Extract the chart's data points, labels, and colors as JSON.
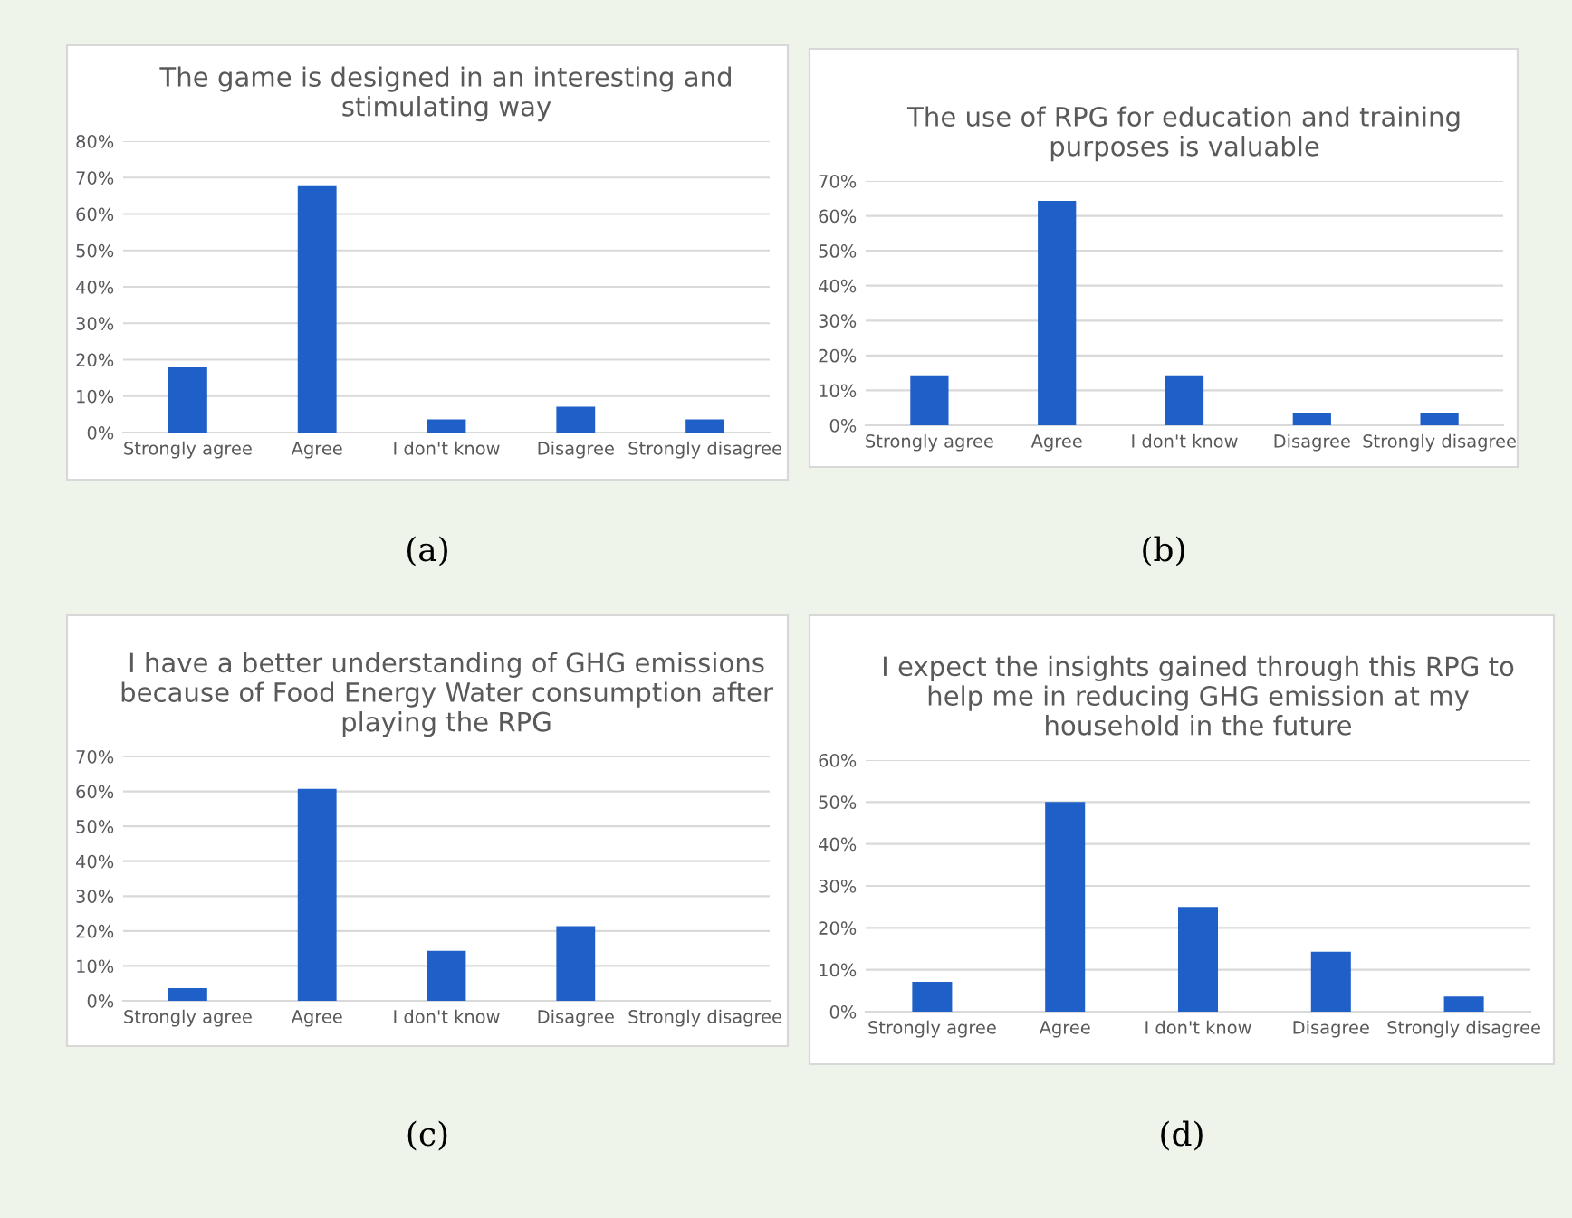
{
  "chart_data": [
    {
      "type": "bar",
      "title": "The game is designed in an interesting and\nstimulating way",
      "categories": [
        "Strongly agree",
        "Agree",
        "I don't know",
        "Disagree",
        "Strongly disagree"
      ],
      "values": [
        17.9,
        67.9,
        3.6,
        7.1,
        3.6
      ],
      "color": "#1f5fc8",
      "ylim": [
        0,
        80
      ],
      "yticks": [
        {
          "value": 0,
          "label": "0%"
        },
        {
          "value": 10,
          "label": "10%"
        },
        {
          "value": 20,
          "label": "20%"
        },
        {
          "value": 30,
          "label": "30%"
        },
        {
          "value": 40,
          "label": "40%"
        },
        {
          "value": 50,
          "label": "50%"
        },
        {
          "value": 60,
          "label": "60%"
        },
        {
          "value": 70,
          "label": "70%"
        },
        {
          "value": 80,
          "label": "80%"
        }
      ],
      "grid": "y",
      "legend": false,
      "annotations": [
        "(a)"
      ]
    },
    {
      "type": "bar",
      "title": "The use of RPG for education and training\npurposes is valuable",
      "categories": [
        "Strongly agree",
        "Agree",
        "I don't know",
        "Disagree",
        "Strongly disagree"
      ],
      "values": [
        14.3,
        64.3,
        14.3,
        3.6,
        3.6
      ],
      "color": "#1f5fc8",
      "ylim": [
        0,
        70
      ],
      "yticks": [
        {
          "value": 0,
          "label": "0%"
        },
        {
          "value": 10,
          "label": "10%"
        },
        {
          "value": 20,
          "label": "20%"
        },
        {
          "value": 30,
          "label": "30%"
        },
        {
          "value": 40,
          "label": "40%"
        },
        {
          "value": 50,
          "label": "50%"
        },
        {
          "value": 60,
          "label": "60%"
        },
        {
          "value": 70,
          "label": "70%"
        }
      ],
      "grid": "y",
      "legend": false,
      "annotations": [
        "(b)"
      ]
    },
    {
      "type": "bar",
      "title": "I have a better understanding of GHG emissions\nbecause of Food Energy Water consumption after\nplaying the RPG",
      "categories": [
        "Strongly agree",
        "Agree",
        "I don't know",
        "Disagree",
        "Strongly disagree"
      ],
      "values": [
        3.6,
        60.7,
        14.3,
        21.4,
        0
      ],
      "color": "#1f5fc8",
      "ylim": [
        0,
        70
      ],
      "yticks": [
        {
          "value": 0,
          "label": "0%"
        },
        {
          "value": 10,
          "label": "10%"
        },
        {
          "value": 20,
          "label": "20%"
        },
        {
          "value": 30,
          "label": "30%"
        },
        {
          "value": 40,
          "label": "40%"
        },
        {
          "value": 50,
          "label": "50%"
        },
        {
          "value": 60,
          "label": "60%"
        },
        {
          "value": 70,
          "label": "70%"
        }
      ],
      "grid": "y",
      "legend": false,
      "annotations": [
        "(c)"
      ]
    },
    {
      "type": "bar",
      "title": "I expect the insights gained through this RPG to\nhelp me in reducing GHG emission at my\nhousehold in the future",
      "categories": [
        "Strongly agree",
        "Agree",
        "I don't know",
        "Disagree",
        "Strongly disagree"
      ],
      "values": [
        7.1,
        50.0,
        25.0,
        14.3,
        3.6
      ],
      "color": "#1f5fc8",
      "ylim": [
        0,
        60
      ],
      "yticks": [
        {
          "value": 0,
          "label": "0%"
        },
        {
          "value": 10,
          "label": "10%"
        },
        {
          "value": 20,
          "label": "20%"
        },
        {
          "value": 30,
          "label": "30%"
        },
        {
          "value": 40,
          "label": "40%"
        },
        {
          "value": 50,
          "label": "50%"
        },
        {
          "value": 60,
          "label": "60%"
        }
      ],
      "grid": "y",
      "legend": false,
      "annotations": [
        "(d)"
      ]
    }
  ]
}
